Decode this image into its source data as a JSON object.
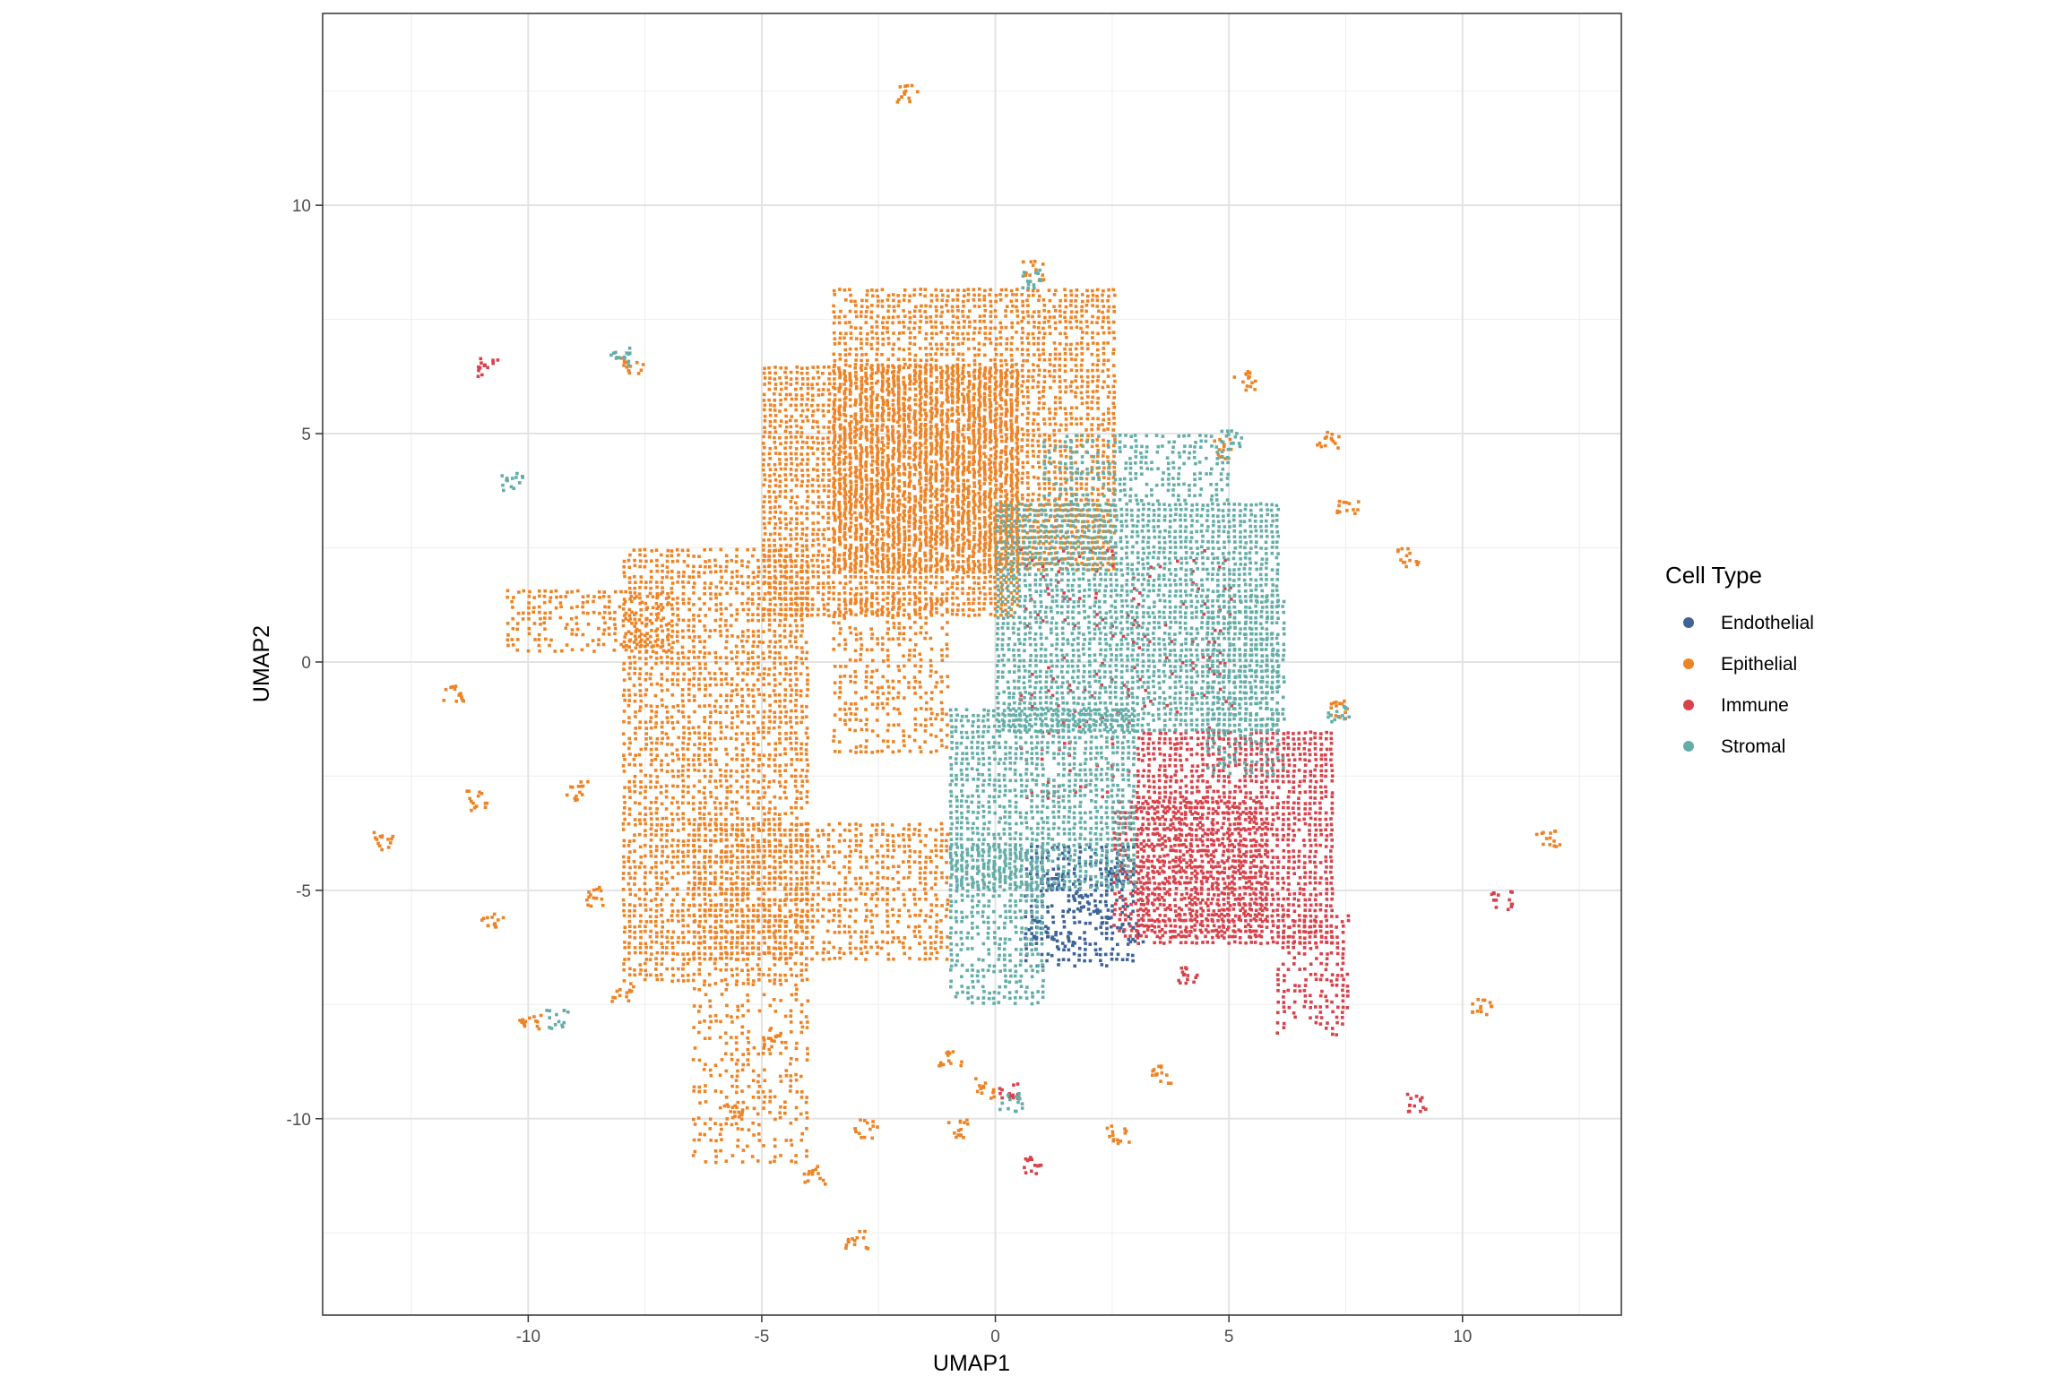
{
  "chart_data": {
    "type": "scatter",
    "xlabel": "UMAP1",
    "ylabel": "UMAP2",
    "xlim": [
      -14.4,
      13.4
    ],
    "ylim": [
      -14.3,
      14.2
    ],
    "x_ticks": [
      -10,
      -5,
      0,
      5,
      10
    ],
    "x_tick_labels": [
      "-10",
      "-5",
      "0",
      "5",
      "10"
    ],
    "y_ticks": [
      -10,
      -5,
      0,
      5,
      10
    ],
    "y_tick_labels": [
      "-10",
      "-5",
      "0",
      "5",
      "10"
    ],
    "grid": true,
    "legend_position": "right",
    "legend_title": "Cell Type",
    "series": [
      {
        "name": "Endothelial",
        "color": "#3E6397",
        "regions": [
          {
            "x": [
              0.6,
              3.0
            ],
            "y": [
              -6.6,
              -4.0
            ],
            "density": 0.55
          }
        ],
        "points": [
          [
            1.8,
            -5.2
          ],
          [
            2.2,
            -5.6
          ],
          [
            1.4,
            -6.0
          ],
          [
            2.6,
            -4.6
          ],
          [
            0.9,
            -5.8
          ],
          [
            2.9,
            -5.9
          ],
          [
            1.2,
            -4.8
          ]
        ]
      },
      {
        "name": "Epithelial",
        "color": "#EE8325",
        "regions": [
          {
            "x": [
              -5.0,
              0.5
            ],
            "y": [
              1.0,
              6.5
            ],
            "density": 0.9
          },
          {
            "x": [
              -3.5,
              2.5
            ],
            "y": [
              2.0,
              8.2
            ],
            "density": 0.8
          },
          {
            "x": [
              -8.0,
              -4.0
            ],
            "y": [
              -7.0,
              2.5
            ],
            "density": 0.7
          },
          {
            "x": [
              -6.5,
              -1.0
            ],
            "y": [
              -6.5,
              -3.5
            ],
            "density": 0.6
          },
          {
            "x": [
              -3.5,
              -1.0
            ],
            "y": [
              -2.0,
              1.5
            ],
            "density": 0.45
          },
          {
            "x": [
              -10.5,
              -7.0
            ],
            "y": [
              0.3,
              1.6
            ],
            "density": 0.5
          },
          {
            "x": [
              -6.5,
              -4.0
            ],
            "y": [
              -11.0,
              -7.0
            ],
            "density": 0.3
          }
        ],
        "points": [
          [
            -1.9,
            12.5
          ],
          [
            -10.0,
            -7.9
          ],
          [
            -11.1,
            -3.0
          ],
          [
            -7.8,
            6.5
          ],
          [
            -13.1,
            -3.9
          ],
          [
            -10.8,
            -5.6
          ],
          [
            -3.0,
            -12.6
          ],
          [
            -3.9,
            -11.2
          ],
          [
            -2.8,
            -10.2
          ],
          [
            -0.8,
            -10.2
          ],
          [
            -1.0,
            -8.6
          ],
          [
            2.6,
            -10.3
          ],
          [
            3.5,
            -9.0
          ],
          [
            4.9,
            4.7
          ],
          [
            7.5,
            3.4
          ],
          [
            8.8,
            2.3
          ],
          [
            10.4,
            -7.5
          ],
          [
            11.8,
            -3.8
          ],
          [
            7.3,
            -1.0
          ],
          [
            7.1,
            4.9
          ],
          [
            -8.0,
            -7.2
          ],
          [
            -4.8,
            -8.2
          ],
          [
            -5.6,
            -9.8
          ],
          [
            -0.3,
            -9.3
          ],
          [
            5.3,
            6.2
          ],
          [
            0.8,
            8.6
          ],
          [
            -8.6,
            -5.1
          ],
          [
            -9.0,
            -2.8
          ],
          [
            -11.6,
            -0.7
          ]
        ]
      },
      {
        "name": "Immune",
        "color": "#D7424B",
        "regions": [
          {
            "x": [
              3.0,
              7.2
            ],
            "y": [
              -6.2,
              -1.5
            ],
            "density": 0.85
          },
          {
            "x": [
              2.5,
              5.8
            ],
            "y": [
              -6.0,
              -3.0
            ],
            "density": 0.6
          },
          {
            "x": [
              6.0,
              7.5
            ],
            "y": [
              -8.2,
              -5.5
            ],
            "density": 0.5
          },
          {
            "x": [
              0.5,
              5.0
            ],
            "y": [
              -3.0,
              2.5
            ],
            "density": 0.1
          }
        ],
        "points": [
          [
            -10.9,
            6.5
          ],
          [
            10.8,
            -5.2
          ],
          [
            0.7,
            -11.0
          ],
          [
            0.3,
            -9.4
          ],
          [
            4.1,
            -6.8
          ],
          [
            9.0,
            -9.6
          ]
        ]
      },
      {
        "name": "Stromal",
        "color": "#64ADA8",
        "regions": [
          {
            "x": [
              0.0,
              6.0
            ],
            "y": [
              -1.5,
              3.5
            ],
            "density": 0.9
          },
          {
            "x": [
              -1.0,
              3.0
            ],
            "y": [
              -5.0,
              -1.0
            ],
            "density": 0.8
          },
          {
            "x": [
              -1.0,
              1.0
            ],
            "y": [
              -7.5,
              -4.0
            ],
            "density": 0.6
          },
          {
            "x": [
              1.0,
              5.0
            ],
            "y": [
              3.5,
              5.0
            ],
            "density": 0.5
          },
          {
            "x": [
              4.5,
              6.2
            ],
            "y": [
              -2.5,
              1.5
            ],
            "density": 0.5
          }
        ],
        "points": [
          [
            -8.1,
            6.7
          ],
          [
            0.8,
            8.4
          ],
          [
            -10.4,
            4.0
          ],
          [
            7.3,
            -1.1
          ],
          [
            5.0,
            4.9
          ],
          [
            -9.4,
            -7.8
          ],
          [
            0.3,
            -9.6
          ]
        ]
      }
    ]
  }
}
